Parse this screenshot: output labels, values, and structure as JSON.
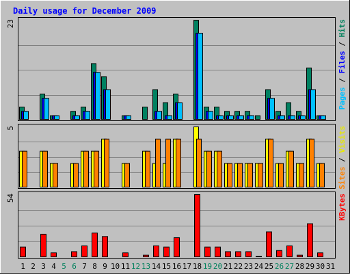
{
  "chart_data": {
    "type": "bar",
    "title": "Daily usage for December 2009",
    "days": [
      "1",
      "2",
      "3",
      "4",
      "5",
      "6",
      "7",
      "8",
      "9",
      "10",
      "11",
      "12",
      "13",
      "14",
      "15",
      "16",
      "17",
      "18",
      "19",
      "20",
      "21",
      "22",
      "23",
      "24",
      "25",
      "26",
      "27",
      "28",
      "29",
      "30",
      "31"
    ],
    "weekend_days": [
      "5",
      "6",
      "12",
      "13",
      "19",
      "20",
      "26",
      "27"
    ],
    "panels": [
      {
        "name": "hits-files-pages",
        "ymax": 23,
        "ymax_label": "23",
        "side_label_parts": [
          {
            "text": "Pages",
            "color": "#00c0ff"
          },
          {
            "text": " / ",
            "color": "#000000"
          },
          {
            "text": "Files",
            "color": "#0000ff"
          },
          {
            "text": " / ",
            "color": "#000000"
          },
          {
            "text": "Hits",
            "color": "#00805c"
          }
        ],
        "series": [
          {
            "name": "Hits",
            "color": "#008060",
            "values": [
              3,
              0,
              6,
              1,
              0,
              2,
              3,
              13,
              10,
              0,
              1,
              0,
              3,
              7,
              4,
              6,
              0,
              23,
              3,
              3,
              2,
              2,
              2,
              1,
              7,
              2,
              4,
              2,
              12,
              1,
              0
            ]
          },
          {
            "name": "Files",
            "color": "#0000ff",
            "values": [
              2,
              0,
              5,
              1,
              0,
              1,
              2,
              11,
              7,
              0,
              1,
              0,
              0,
              2,
              1,
              4,
              0,
              20,
              2,
              1,
              1,
              1,
              1,
              0,
              5,
              1,
              1,
              1,
              7,
              1,
              0
            ]
          },
          {
            "name": "Pages",
            "color": "#00c0ff",
            "values": [
              2,
              0,
              5,
              1,
              0,
              1,
              2,
              11,
              7,
              0,
              1,
              0,
              0,
              2,
              1,
              4,
              0,
              20,
              2,
              1,
              1,
              1,
              1,
              0,
              5,
              1,
              1,
              1,
              7,
              1,
              0
            ]
          }
        ]
      },
      {
        "name": "visits-sites",
        "ymax": 5,
        "ymax_label": "5",
        "side_label_parts": [
          {
            "text": "Sites",
            "color": "#ff8000"
          },
          {
            "text": " / ",
            "color": "#000000"
          },
          {
            "text": "Visits",
            "color": "#e8e800"
          }
        ],
        "series": [
          {
            "name": "Visits",
            "color": "#ffff00",
            "values": [
              3,
              0,
              3,
              2,
              0,
              2,
              3,
              3,
              4,
              0,
              2,
              0,
              3,
              2,
              2,
              4,
              0,
              5,
              3,
              3,
              2,
              2,
              2,
              2,
              4,
              2,
              3,
              2,
              4,
              2,
              0
            ]
          },
          {
            "name": "Sites",
            "color": "#ff8000",
            "values": [
              3,
              0,
              3,
              2,
              0,
              2,
              3,
              3,
              4,
              0,
              2,
              0,
              3,
              4,
              4,
              4,
              0,
              4,
              3,
              3,
              2,
              2,
              2,
              2,
              4,
              2,
              3,
              2,
              4,
              2,
              0
            ]
          }
        ]
      },
      {
        "name": "kbytes",
        "ymax": 54,
        "ymax_label": "54",
        "side_label_parts": [
          {
            "text": "KBytes",
            "color": "#ff0000"
          }
        ],
        "series": [
          {
            "name": "KBytes",
            "color": "#ff0000",
            "values": [
              9,
              0,
              20,
              4,
              0,
              5,
              10,
              21,
              18,
              0,
              4,
              0,
              2,
              10,
              9,
              17,
              0,
              54,
              9,
              9,
              5,
              5,
              5,
              1,
              22,
              6,
              10,
              2,
              29,
              4,
              0
            ]
          }
        ]
      }
    ],
    "colors": {
      "background": "#c0c0c0",
      "panel_border": "#000000",
      "title": "#0000ff",
      "gridline": "#808080",
      "weekday_label": "#000000",
      "weekend_label": "#00805c"
    },
    "grid": true
  }
}
